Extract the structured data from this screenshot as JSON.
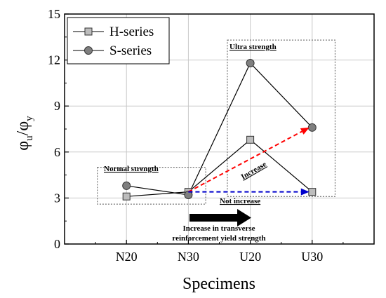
{
  "chart_data": {
    "type": "line",
    "categories": [
      "N20",
      "N30",
      "U20",
      "U30"
    ],
    "series": [
      {
        "name": "H-series",
        "marker": "square",
        "values": [
          3.1,
          3.4,
          6.8,
          3.4
        ],
        "color": "#bdbdbd"
      },
      {
        "name": "S-series",
        "marker": "circle",
        "values": [
          3.8,
          3.2,
          11.8,
          7.6
        ],
        "color": "#7f7f7f"
      }
    ],
    "xlabel": "Specimens",
    "ylabel": {
      "base": "φ",
      "sub1": "u",
      "slash": "/φ",
      "sub2": "y"
    },
    "ylim": [
      0,
      15
    ],
    "yticks": [
      0,
      3,
      6,
      9,
      12,
      15
    ],
    "grid": true,
    "legend_position": "top-left",
    "annotations": {
      "normal_strength": "Normal strength",
      "ultra_strength": "Ultra strength",
      "increase": "Increase",
      "not_increase": "Not increase",
      "transverse_line1": "Increase in transverse",
      "transverse_line2": "reinforcement yield strength"
    },
    "arrows": [
      {
        "name": "increase",
        "from": [
          "N30",
          3.4
        ],
        "to": [
          "U30",
          7.6
        ],
        "color": "#ff0000"
      },
      {
        "name": "not-increase",
        "from": [
          "N30",
          3.4
        ],
        "to": [
          "U30",
          3.4
        ],
        "color": "#0000cc"
      }
    ]
  }
}
